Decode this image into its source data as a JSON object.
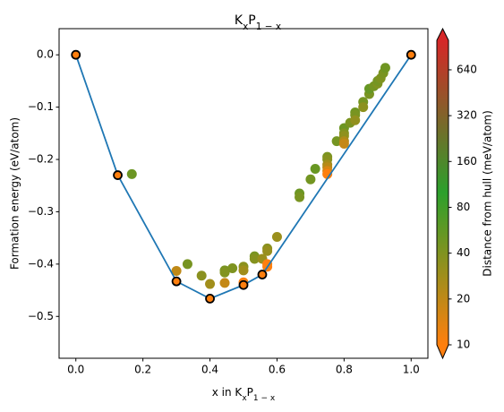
{
  "chart_data": {
    "type": "scatter",
    "title": [
      "K",
      "x",
      "P",
      "1 − x"
    ],
    "x_label": [
      "x in K",
      "x",
      "P",
      "1 − x"
    ],
    "y_label": "Formation energy (eV/atom)",
    "xlim": [
      -0.05,
      1.05
    ],
    "ylim": [
      -0.58,
      0.05
    ],
    "xticks": [
      {
        "value": 0,
        "label": "0.0"
      },
      {
        "value": 0.2,
        "label": "0.2"
      },
      {
        "value": 0.4,
        "label": "0.4"
      },
      {
        "value": 0.6,
        "label": "0.6"
      },
      {
        "value": 0.8,
        "label": "0.8"
      },
      {
        "value": 1,
        "label": "1.0"
      }
    ],
    "yticks": [
      {
        "value": 0,
        "label": "0.0"
      },
      {
        "value": -0.1,
        "label": "−0.1"
      },
      {
        "value": -0.2,
        "label": "−0.2"
      },
      {
        "value": -0.3,
        "label": "−0.3"
      },
      {
        "value": -0.4,
        "label": "−0.4"
      },
      {
        "value": -0.5,
        "label": "−0.5"
      }
    ],
    "colorbar": {
      "label": "Distance from hull (meV/atom)",
      "lim": [
        10,
        1000
      ],
      "log": true,
      "ticks": [
        10,
        20,
        40,
        80,
        160,
        320,
        640
      ],
      "colors": [
        "#ff7f0e",
        "#2ca02c",
        "#d62728"
      ]
    },
    "points": {
      "x": [
        0.167,
        0.3,
        0.333,
        0.375,
        0.4,
        0.444,
        0.444,
        0.444,
        0.467,
        0.5,
        0.5,
        0.5,
        0.533,
        0.533,
        0.556,
        0.571,
        0.571,
        0.571,
        0.571,
        0.6,
        0.667,
        0.667,
        0.7,
        0.714,
        0.75,
        0.75,
        0.75,
        0.75,
        0.75,
        0.75,
        0.778,
        0.8,
        0.8,
        0.8,
        0.8,
        0.8,
        0.818,
        0.833,
        0.833,
        0.833,
        0.857,
        0.857,
        0.875,
        0.875,
        0.889,
        0.9,
        0.9,
        0.909,
        0.917,
        0.923
      ],
      "y": [
        -0.228,
        -0.413,
        -0.4,
        -0.422,
        -0.438,
        -0.436,
        -0.412,
        -0.416,
        -0.408,
        -0.405,
        -0.435,
        -0.412,
        -0.385,
        -0.39,
        -0.39,
        -0.37,
        -0.375,
        -0.4,
        -0.405,
        -0.348,
        -0.265,
        -0.272,
        -0.238,
        -0.218,
        -0.195,
        -0.2,
        -0.21,
        -0.215,
        -0.222,
        -0.228,
        -0.165,
        -0.14,
        -0.15,
        -0.155,
        -0.165,
        -0.17,
        -0.13,
        -0.11,
        -0.115,
        -0.125,
        -0.09,
        -0.1,
        -0.075,
        -0.065,
        -0.06,
        -0.055,
        -0.05,
        -0.045,
        -0.035,
        -0.025
      ],
      "c": [
        50,
        20,
        44,
        36,
        28,
        19,
        43,
        39,
        41,
        35,
        8,
        28,
        43,
        38,
        30,
        36,
        31,
        6,
        1,
        30,
        50,
        43,
        46,
        52,
        42,
        37,
        27,
        22,
        15,
        9,
        45,
        49,
        39,
        34,
        24,
        19,
        42,
        48,
        43,
        33,
        45,
        35,
        43,
        53,
        45,
        40,
        45,
        41,
        43,
        48
      ]
    },
    "hull": {
      "x": [
        0,
        0.125,
        0.3,
        0.4,
        0.5,
        0.556,
        1.0
      ],
      "y": [
        0,
        -0.23,
        -0.433,
        -0.466,
        -0.44,
        -0.42,
        0
      ],
      "line_color": "#1f77b4",
      "marker_color": "#ff7f0e",
      "edge_color": "#000000"
    }
  }
}
